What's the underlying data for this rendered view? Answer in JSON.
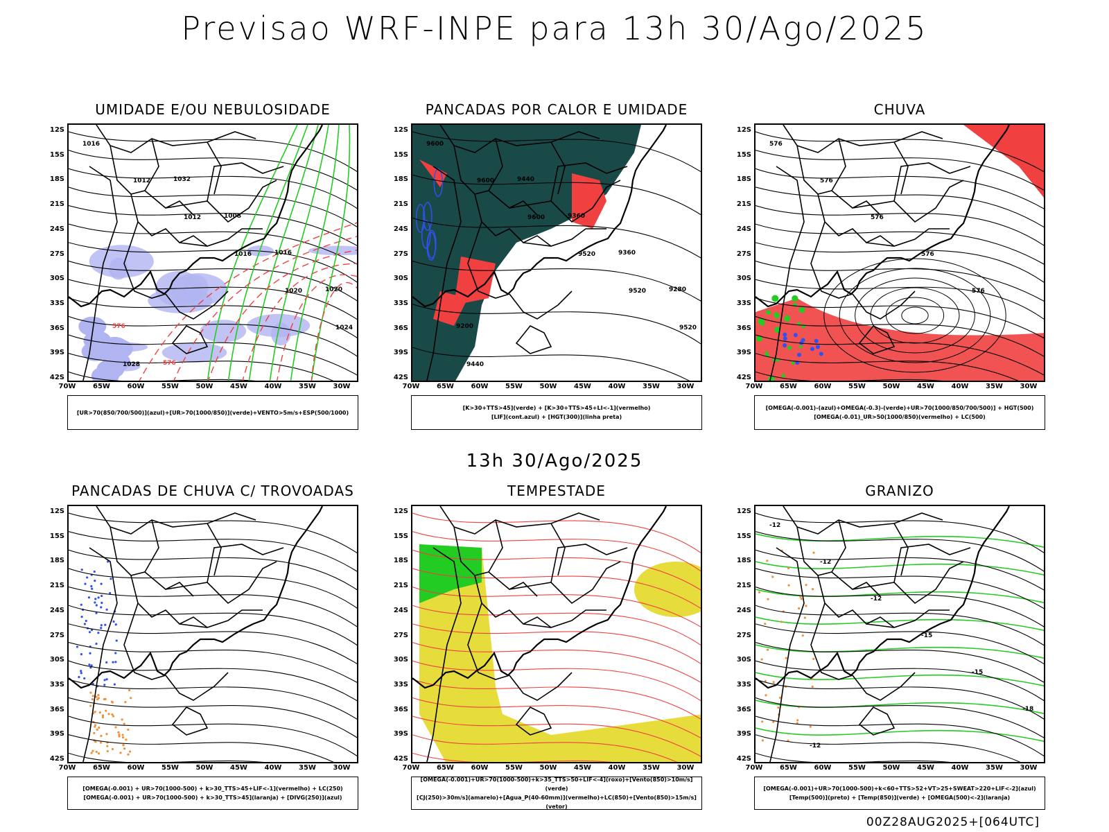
{
  "main_title": "Previsao WRF-INPE  para 13h 30/Ago/2025",
  "mid_title": "13h 30/Ago/2025",
  "footer": "00Z28AUG2025+[064UTC]",
  "lat_labels": [
    "12S",
    "15S",
    "18S",
    "21S",
    "24S",
    "27S",
    "30S",
    "33S",
    "36S",
    "39S",
    "42S"
  ],
  "lon_labels": [
    "70W",
    "65W",
    "60W",
    "55W",
    "50W",
    "45W",
    "40W",
    "35W",
    "30W"
  ],
  "panels": [
    {
      "id": "umidade",
      "title": "UMIDADE E/OU NEBULOSIDADE",
      "legend": [
        "[UR>70(850/700/500)](azul)+[UR>70(1000/850)](verde)+VENTO>5m/s+ESP(500/1000)"
      ],
      "contour_labels": [
        "1016",
        "1012",
        "1012",
        "1016",
        "1020",
        "1024",
        "1028",
        "1032",
        "1008",
        "1016",
        "1020",
        "576",
        "576"
      ]
    },
    {
      "id": "pancadas-calor",
      "title": "PANCADAS POR CALOR E UMIDADE",
      "legend": [
        "[K>30+TTS>45](verde) + [K>30+TTS>45+LI<-1](vermelho)",
        "[LIF](cont.azul) + [HGT(300)](linha preta)"
      ],
      "contour_labels": [
        "9600",
        "9600",
        "9600",
        "9520",
        "9520",
        "9520",
        "9440",
        "9440",
        "9360",
        "9360",
        "9280",
        "9200"
      ]
    },
    {
      "id": "chuva",
      "title": "CHUVA",
      "legend": [
        "[OMEGA(-0.001)-(azul)+OMEGA(-0.3)-(verde)+UR>70(1000/850/700/500)] + HGT(500)",
        "[OMEGA(-0.01)_UR>50(1000/850)(vermelho) + LC(500)"
      ],
      "contour_labels": [
        "576",
        "576",
        "576",
        "576",
        "576"
      ]
    },
    {
      "id": "pancadas-trovoadas",
      "title": "PANCADAS DE CHUVA C/ TROVOADAS",
      "legend": [
        "[OMEGA(-0.001) + UR>70(1000-500) + k>30_TTS>45+LIF<-1](vermelho) + LC(250)",
        "[OMEGA(-0.001) + UR>70(1000-500) + k>30_TTS>45](laranja) + [DIVG(250)](azul)"
      ],
      "contour_labels": []
    },
    {
      "id": "tempestade",
      "title": "TEMPESTADE",
      "legend": [
        "[OMEGA(-0.001)+UR>70(1000-500)+k>35_TTS>50+LIF<-4](roxo)+[Vento(850)>10m/s](verde)",
        "[CJ(250)>30m/s](amarelo)+[Agua_P(40-60mm)](vermelho)+LC(850)+[Vento(850)>15m/s](vetor)"
      ],
      "contour_labels": []
    },
    {
      "id": "granizo",
      "title": "GRANIZO",
      "legend": [
        "[OMEGA(-0.001)+UR>70(1000-500)+k<60+TTS>52+VT>25+SWEAT>220+LIF<-2](azul)",
        "[Temp(500)](preto) + [Temp(850)](verde) + [OMEGA(500)<-2](laranja)"
      ],
      "contour_labels": [
        "-12",
        "-12",
        "-12",
        "-15",
        "-15",
        "-18",
        "-12"
      ]
    }
  ],
  "colors": {
    "red": "#f04040",
    "green": "#22cc22",
    "blue": "#3050f0",
    "lavender": "#b0b4f0",
    "darkteal": "#1a4a48",
    "yellow": "#e6dc3c",
    "orange": "#f0903a",
    "black": "#000000"
  }
}
